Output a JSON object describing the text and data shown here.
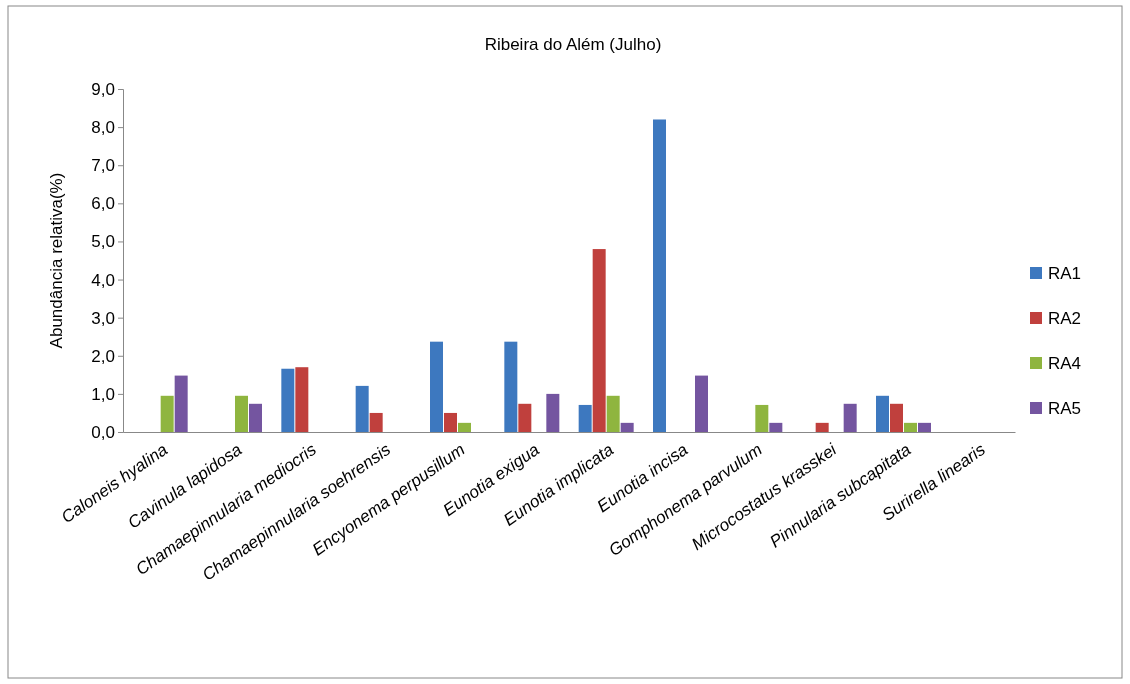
{
  "chart_data": {
    "type": "bar",
    "title": "Ribeira do Além (Julho)",
    "ylabel": "Abundância relativa(%)",
    "categories": [
      "Caloneis hyalina",
      "Cavinula lapidosa",
      "Chamaepinnularia mediocris",
      "Chamaepinnularia soehrensis",
      "Encyonema perpusillum",
      "Eunotia exigua",
      "Eunotia implicata",
      "Eunotia incisa",
      "Gomphonema parvulum",
      "Microcostatus krasskei",
      "Pinnularia subcapitata",
      "Surirella linearis"
    ],
    "series": [
      {
        "name": "RA1",
        "color": "#3d78bf",
        "values": [
          null,
          null,
          1.66,
          1.21,
          2.37,
          2.37,
          0.71,
          8.2,
          null,
          null,
          0.95,
          null
        ]
      },
      {
        "name": "RA2",
        "color": "#c0403d",
        "values": [
          null,
          null,
          1.7,
          0.5,
          0.5,
          0.74,
          4.8,
          null,
          null,
          0.24,
          0.74,
          null
        ]
      },
      {
        "name": "RA4",
        "color": "#8fb53f",
        "values": [
          0.95,
          0.95,
          null,
          null,
          0.24,
          null,
          0.95,
          null,
          0.71,
          null,
          0.24,
          null
        ]
      },
      {
        "name": "RA5",
        "color": "#7455a0",
        "values": [
          1.48,
          0.74,
          null,
          null,
          null,
          1.0,
          0.24,
          1.48,
          0.24,
          0.74,
          0.24,
          null
        ]
      }
    ],
    "ylim": [
      0,
      9
    ],
    "yticks": [
      {
        "value": 0,
        "label": "0,0"
      },
      {
        "value": 1,
        "label": "1,0"
      },
      {
        "value": 2,
        "label": "2,0"
      },
      {
        "value": 3,
        "label": "3,0"
      },
      {
        "value": 4,
        "label": "4,0"
      },
      {
        "value": 5,
        "label": "5,0"
      },
      {
        "value": 6,
        "label": "6,0"
      },
      {
        "value": 7,
        "label": "7,0"
      },
      {
        "value": 8,
        "label": "8,0"
      },
      {
        "value": 9,
        "label": "9,0"
      }
    ],
    "grid": false,
    "legend": "right"
  }
}
